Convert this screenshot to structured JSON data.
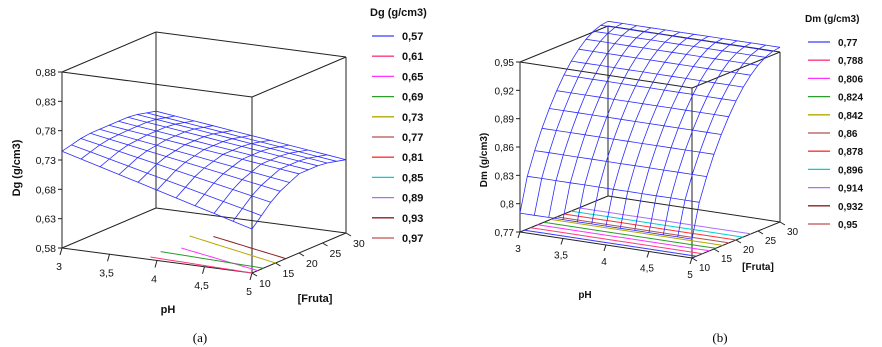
{
  "figure": {
    "panel_a_caption": "(a)",
    "panel_b_caption": "(b)"
  },
  "chart_data": [
    {
      "type": "surface",
      "panel": "a",
      "title": "",
      "xlabel": "pH",
      "ylabel": "[Fruta]",
      "zlabel": "Dg (g/cm3)",
      "x_ticks": [
        "3",
        "3,5",
        "4",
        "4,5",
        "5"
      ],
      "y_ticks": [
        "10",
        "15",
        "20",
        "25",
        "30"
      ],
      "z_ticks": [
        "0,58",
        "0,63",
        "0,68",
        "0,73",
        "0,78",
        "0,83",
        "0,88"
      ],
      "xlim": [
        3,
        5
      ],
      "ylim": [
        10,
        30
      ],
      "zlim": [
        0.58,
        0.88
      ],
      "legend_title": "Dg (g/cm3)",
      "legend": [
        {
          "label": "0,57",
          "color": "#3a3aff"
        },
        {
          "label": "0,61",
          "color": "#ff3a7a"
        },
        {
          "label": "0,65",
          "color": "#ff33ff"
        },
        {
          "label": "0,69",
          "color": "#2a9d2a"
        },
        {
          "label": "0,73",
          "color": "#b5a800"
        },
        {
          "label": "0,77",
          "color": "#b05050"
        },
        {
          "label": "0,81",
          "color": "#ff3333"
        },
        {
          "label": "0,85",
          "color": "#00d0d0"
        },
        {
          "label": "0,89",
          "color": "#b36bff"
        },
        {
          "label": "0,93",
          "color": "#8b2020"
        },
        {
          "label": "0,97",
          "color": "#c05050"
        }
      ],
      "surface": {
        "z_at_ph3": [
          0.745,
          0.755,
          0.755,
          0.755,
          0.745
        ],
        "z_at_ph5": [
          0.655,
          0.695,
          0.715,
          0.715,
          0.705
        ]
      }
    },
    {
      "type": "surface",
      "panel": "b",
      "title": "",
      "xlabel": "pH",
      "ylabel": "[Fruta]",
      "zlabel": "Dm (g/cm3)",
      "x_ticks": [
        "3",
        "3,5",
        "4",
        "4,5",
        "5"
      ],
      "y_ticks": [
        "10",
        "15",
        "20",
        "25",
        "30"
      ],
      "z_ticks": [
        "0,77",
        "0,8",
        "0,83",
        "0,86",
        "0,89",
        "0,92",
        "0,95"
      ],
      "xlim": [
        3,
        5
      ],
      "ylim": [
        10,
        30
      ],
      "zlim": [
        0.77,
        0.95
      ],
      "legend_title": "Dm (g/cm3)",
      "legend": [
        {
          "label": "0,77",
          "color": "#3a3aff"
        },
        {
          "label": "0,788",
          "color": "#ff3a7a"
        },
        {
          "label": "0,806",
          "color": "#ff33ff"
        },
        {
          "label": "0,824",
          "color": "#2a9d2a"
        },
        {
          "label": "0,842",
          "color": "#b5a800"
        },
        {
          "label": "0,86",
          "color": "#b05050"
        },
        {
          "label": "0,878",
          "color": "#ff3333"
        },
        {
          "label": "0,896",
          "color": "#00d0d0"
        },
        {
          "label": "0,914",
          "color": "#b36bff"
        },
        {
          "label": "0,932",
          "color": "#8b2020"
        },
        {
          "label": "0,95",
          "color": "#c05050"
        }
      ],
      "surface": {
        "z_at_fruta10": [
          0.79,
          0.79,
          0.79,
          0.79,
          0.79
        ],
        "z_at_fruta30": [
          0.955,
          0.955,
          0.955,
          0.955,
          0.955
        ]
      }
    }
  ]
}
